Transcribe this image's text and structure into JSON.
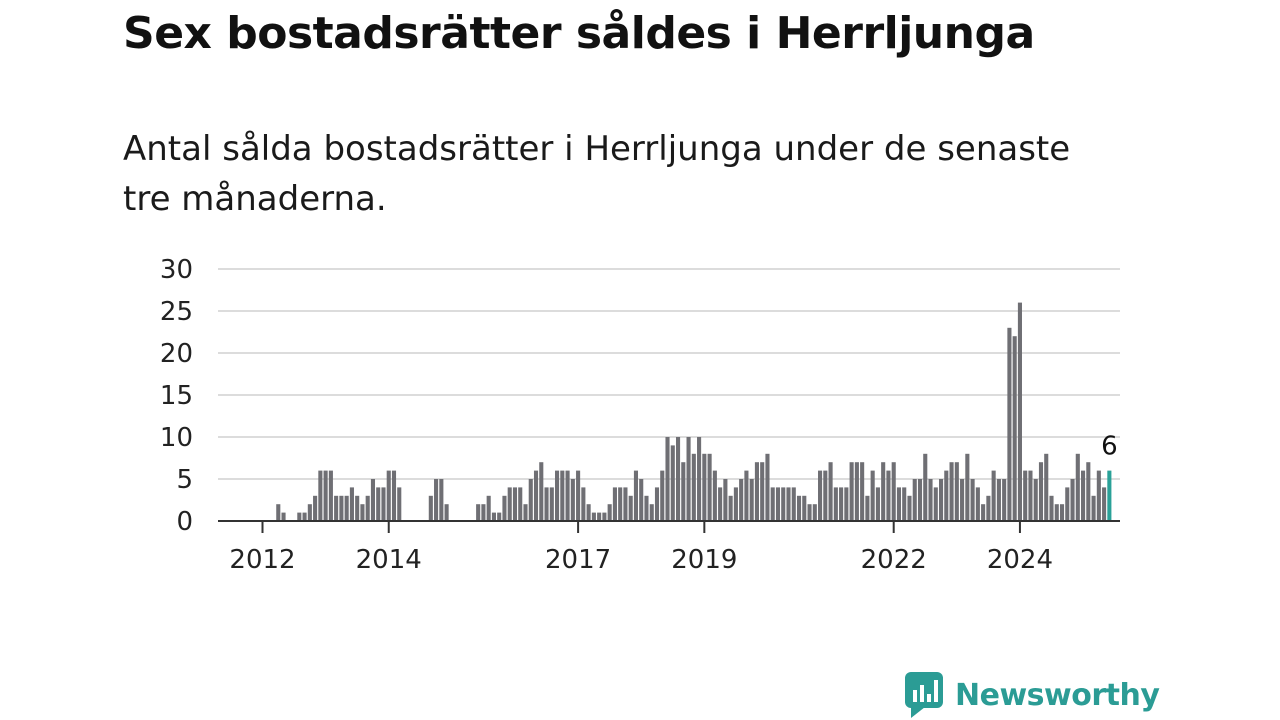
{
  "header": {
    "title": "Sex bostadsrätter såldes i Herrljunga",
    "subtitle": "Antal sålda bostadsrätter i Herrljunga under de senaste tre månaderna."
  },
  "brand": {
    "name": "Newsworthy",
    "icon": "newsworthy-logo-icon",
    "color": "#2b9c95"
  },
  "chart_data": {
    "type": "bar",
    "title": "Sex bostadsrätter såldes i Herrljunga",
    "subtitle": "Antal sålda bostadsrätter i Herrljunga under de senaste tre månaderna.",
    "xlabel": "",
    "ylabel": "",
    "ylim": [
      0,
      30
    ],
    "yticks": [
      0,
      5,
      10,
      15,
      20,
      25,
      30
    ],
    "xtick_labels": [
      "2012",
      "2014",
      "2017",
      "2019",
      "2022",
      "2024"
    ],
    "grid": "horizontal",
    "start": "2011-10",
    "frequency": "monthly",
    "bar_color": "#6f6f74",
    "highlight_color": "#2aa198",
    "highlight_last": true,
    "last_value_label": "6",
    "values": [
      0,
      0,
      0,
      0,
      0,
      0,
      2,
      1,
      0,
      0,
      1,
      1,
      2,
      3,
      6,
      6,
      6,
      3,
      3,
      3,
      4,
      3,
      2,
      3,
      5,
      4,
      4,
      6,
      6,
      4,
      0,
      0,
      0,
      0,
      0,
      3,
      5,
      5,
      2,
      0,
      0,
      0,
      0,
      0,
      2,
      2,
      3,
      1,
      1,
      3,
      4,
      4,
      4,
      2,
      5,
      6,
      7,
      4,
      4,
      6,
      6,
      6,
      5,
      6,
      4,
      2,
      1,
      1,
      1,
      2,
      4,
      4,
      4,
      3,
      6,
      5,
      3,
      2,
      4,
      6,
      10,
      9,
      10,
      7,
      10,
      8,
      10,
      8,
      8,
      6,
      4,
      5,
      3,
      4,
      5,
      6,
      5,
      7,
      7,
      8,
      4,
      4,
      4,
      4,
      4,
      3,
      3,
      2,
      2,
      6,
      6,
      7,
      4,
      4,
      4,
      7,
      7,
      7,
      3,
      6,
      4,
      7,
      6,
      7,
      4,
      4,
      3,
      5,
      5,
      8,
      5,
      4,
      5,
      6,
      7,
      7,
      5,
      8,
      5,
      4,
      2,
      3,
      6,
      5,
      5,
      23,
      22,
      26,
      6,
      6,
      5,
      7,
      8,
      3,
      2,
      2,
      4,
      5,
      8,
      6,
      7,
      3,
      6,
      4,
      6
    ]
  }
}
